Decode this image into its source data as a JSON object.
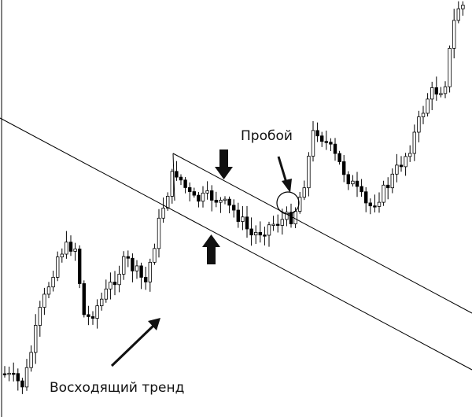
{
  "annotations": {
    "breakout": "Пробой",
    "uptrend": "Восходящий тренд"
  }
}
